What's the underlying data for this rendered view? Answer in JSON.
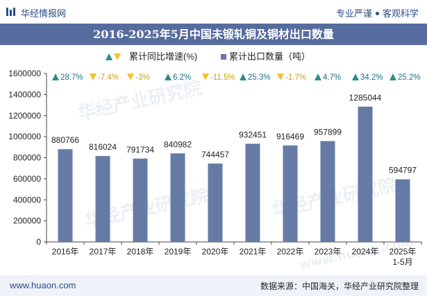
{
  "header": {
    "brand": "华经情报网",
    "slogan_a": "专业严谨",
    "slogan_b": "客观科学"
  },
  "title": "2016-2025年5月中国未锻轧铜及铜材出口数量",
  "legend": {
    "growth_label": "累计同比增速(%)",
    "volume_label": "累计出口数量（吨）"
  },
  "footer": {
    "site": "www.huaon.com",
    "source": "数据来源：中国海关，华经产业研究院整理"
  },
  "watermark": {
    "cn": "华经产业研究院",
    "url": "www.huaon.com"
  },
  "colors": {
    "bar": "#667aa6",
    "up": "#2e8b8b",
    "down": "#f2c230",
    "header_bg": "#566c9e"
  },
  "chart_data": {
    "type": "bar",
    "categories": [
      "2016年",
      "2017年",
      "2018年",
      "2019年",
      "2020年",
      "2021年",
      "2022年",
      "2023年",
      "2024年",
      "2025年\n1-5月"
    ],
    "series": [
      {
        "name": "累计出口数量（吨）",
        "values": [
          880766,
          816024,
          791734,
          840982,
          744457,
          932451,
          916469,
          957899,
          1285044,
          594797
        ]
      }
    ],
    "growth": {
      "name": "累计同比增速(%)",
      "labels": [
        "28.7%",
        "-7.4%",
        "-3%",
        "6.2%",
        "-11.5%",
        "25.3%",
        "-1.7%",
        "4.7%",
        "34.2%",
        "25.2%"
      ],
      "directions": [
        "up",
        "down",
        "down",
        "up",
        "down",
        "up",
        "down",
        "up",
        "up",
        "up"
      ]
    },
    "ylim": [
      0,
      1600000
    ],
    "yticks": [
      "0",
      "200000",
      "400000",
      "600000",
      "800000",
      "1000000",
      "1200000",
      "1400000",
      "1600000"
    ],
    "grid": false
  }
}
